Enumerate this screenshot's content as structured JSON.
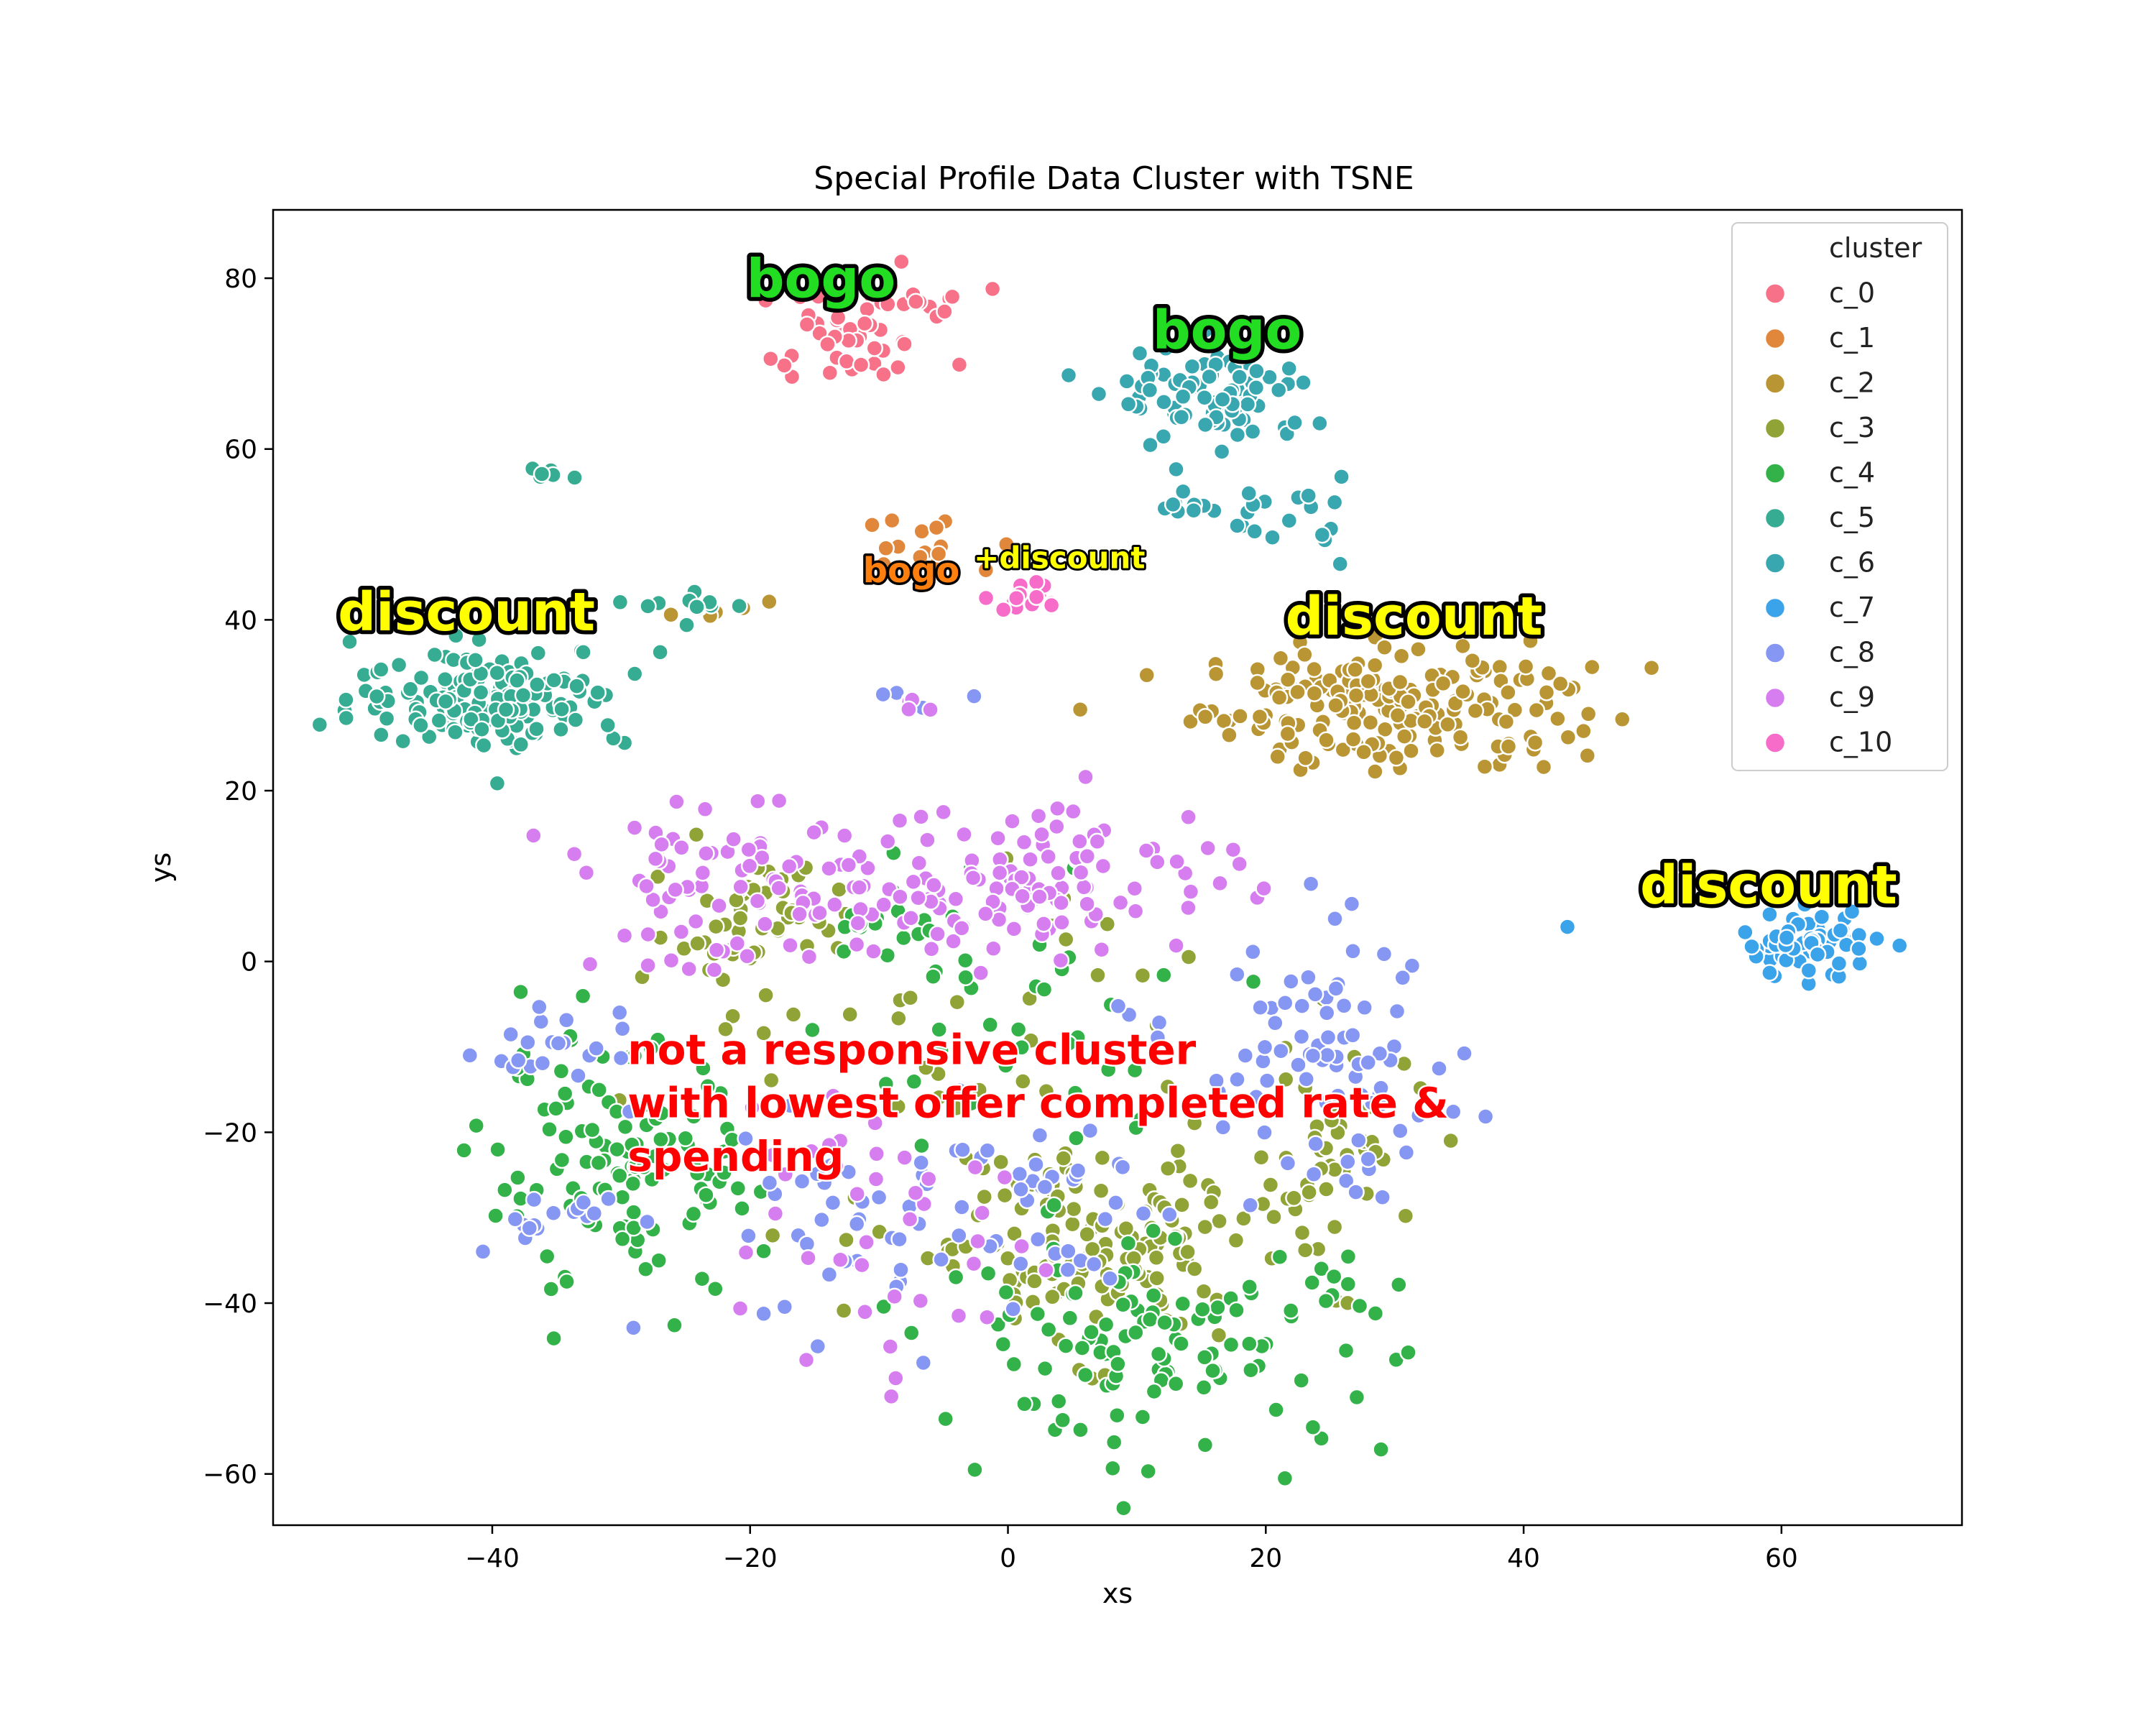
{
  "chart_data": {
    "type": "scatter",
    "title": "Special Profile Data Cluster with TSNE",
    "xlabel": "xs",
    "ylabel": "ys",
    "xlim": [
      -57,
      74
    ],
    "ylim": [
      -66,
      88
    ],
    "xticks": [
      -40,
      -20,
      0,
      20,
      40,
      60
    ],
    "yticks": [
      -60,
      -40,
      -20,
      0,
      20,
      40,
      60,
      80
    ],
    "grid": false,
    "legend": {
      "title": "cluster",
      "position": "top-right"
    },
    "series": [
      {
        "name": "c_0",
        "color": "#f77189",
        "clusters": [
          [
            -12,
            73,
            5,
            4,
            40
          ],
          [
            -5,
            77,
            2.5,
            1.2,
            10
          ],
          [
            -18,
            70,
            1.2,
            0.6,
            4
          ]
        ]
      },
      {
        "name": "c_1",
        "color": "#e0873b",
        "clusters": [
          [
            -6,
            49,
            3.5,
            2,
            16
          ]
        ]
      },
      {
        "name": "c_2",
        "color": "#b99534",
        "clusters": [
          [
            30,
            30,
            10,
            5,
            190
          ],
          [
            -23,
            41,
            3,
            1.5,
            6
          ]
        ]
      },
      {
        "name": "c_3",
        "color": "#8fa336",
        "clusters": [
          [
            -19,
            5,
            4,
            4,
            45
          ],
          [
            6,
            -33,
            10,
            8,
            150
          ],
          [
            25,
            -22,
            5,
            7,
            40
          ],
          [
            -5,
            -5,
            15,
            12,
            40
          ]
        ]
      },
      {
        "name": "c_4",
        "color": "#33b249",
        "clusters": [
          [
            -30,
            -25,
            7,
            10,
            120
          ],
          [
            12,
            -45,
            12,
            8,
            120
          ],
          [
            0,
            -5,
            12,
            12,
            40
          ],
          [
            -9,
            3,
            5,
            3,
            15
          ]
        ]
      },
      {
        "name": "c_5",
        "color": "#36ac93",
        "clusters": [
          [
            -40,
            31,
            7,
            4,
            160
          ],
          [
            -24,
            42,
            3,
            1.5,
            12
          ],
          [
            -35,
            57,
            1.2,
            0.6,
            6
          ]
        ]
      },
      {
        "name": "c_6",
        "color": "#39a7b0",
        "clusters": [
          [
            16,
            66,
            5,
            4,
            90
          ],
          [
            21,
            52,
            3.5,
            3,
            20
          ],
          [
            13,
            54,
            1.5,
            1,
            8
          ]
        ]
      },
      {
        "name": "c_7",
        "color": "#3ba3ea",
        "clusters": [
          [
            62,
            2,
            3.5,
            2.5,
            70
          ],
          [
            43,
            3.5,
            0.4,
            0.4,
            1
          ]
        ]
      },
      {
        "name": "c_8",
        "color": "#8696f3",
        "clusters": [
          [
            -35,
            -10,
            4,
            3,
            20
          ],
          [
            -36,
            -31,
            3,
            2,
            15
          ],
          [
            25,
            -12,
            7,
            10,
            80
          ],
          [
            -5,
            -30,
            15,
            10,
            80
          ],
          [
            -8,
            31,
            2,
            1,
            6
          ]
        ]
      },
      {
        "name": "c_9",
        "color": "#d67ef0",
        "clusters": [
          [
            -20,
            8,
            10,
            6,
            90
          ],
          [
            3,
            10,
            10,
            6,
            110
          ],
          [
            -10,
            -30,
            8,
            14,
            40
          ],
          [
            -7,
            30,
            1,
            0.6,
            4
          ]
        ]
      },
      {
        "name": "c_10",
        "color": "#f66cc8",
        "clusters": [
          [
            2,
            42.5,
            2.5,
            1.2,
            14
          ]
        ]
      }
    ],
    "annotations": [
      {
        "text": "bogo",
        "x": -14.5,
        "y": 79.5,
        "fill": "#22dd22",
        "size": 74
      },
      {
        "text": "bogo",
        "x": 17,
        "y": 73.5,
        "fill": "#22dd22",
        "size": 74
      },
      {
        "text": "bogo",
        "x": -7.5,
        "y": 45.5,
        "fill": "#ff7f0e",
        "size": 48
      },
      {
        "text": "+discount",
        "x": 4,
        "y": 47,
        "fill": "#ffff00",
        "size": 42
      },
      {
        "text": "discount",
        "x": -42,
        "y": 40.5,
        "fill": "#ffff00",
        "size": 74
      },
      {
        "text": "discount",
        "x": 31.5,
        "y": 40,
        "fill": "#ffff00",
        "size": 74
      },
      {
        "text": "discount",
        "x": 59,
        "y": 8.5,
        "fill": "#ffff00",
        "size": 74
      }
    ],
    "red_annotation": {
      "lines": [
        "not a responsive cluster",
        "with lowest offer completed rate &",
        "spending"
      ],
      "x": -29.5,
      "y": -12,
      "size": 58
    }
  }
}
